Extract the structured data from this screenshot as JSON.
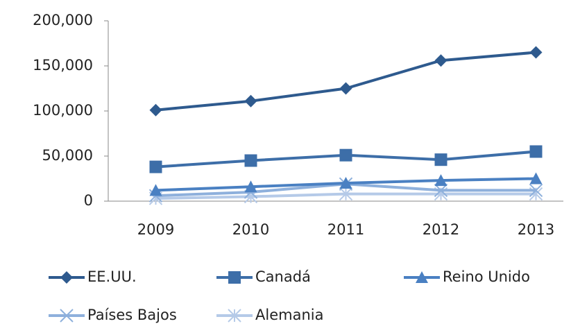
{
  "chart_data": {
    "type": "line",
    "categories": [
      "2009",
      "2010",
      "2011",
      "2012",
      "2013"
    ],
    "series": [
      {
        "name": "EE.UU.",
        "color": "#2e5a8e",
        "marker": "diamond",
        "values": [
          101000,
          111000,
          125000,
          156000,
          165000
        ]
      },
      {
        "name": "Canadá",
        "color": "#3d6ea8",
        "marker": "square",
        "values": [
          38000,
          45000,
          51000,
          46000,
          55000
        ]
      },
      {
        "name": "Reino Unido",
        "color": "#4a80c2",
        "marker": "triangle",
        "values": [
          12000,
          16000,
          20000,
          23000,
          25000
        ]
      },
      {
        "name": "Países Bajos",
        "color": "#8eb0dc",
        "marker": "x",
        "values": [
          6000,
          10000,
          19000,
          12000,
          12000
        ]
      },
      {
        "name": "Alemania",
        "color": "#b5cae8",
        "marker": "asterisk",
        "values": [
          3000,
          5000,
          8000,
          8000,
          8000
        ]
      }
    ],
    "ylim": [
      0,
      200000
    ],
    "yticks": [
      0,
      {
        "value": 50000,
        "label": "50,000"
      },
      {
        "value": 100000,
        "label": "100,000"
      },
      {
        "value": 150000,
        "label": "150,000"
      },
      {
        "value": 200000,
        "label": "200,000"
      }
    ],
    "grid": false
  }
}
